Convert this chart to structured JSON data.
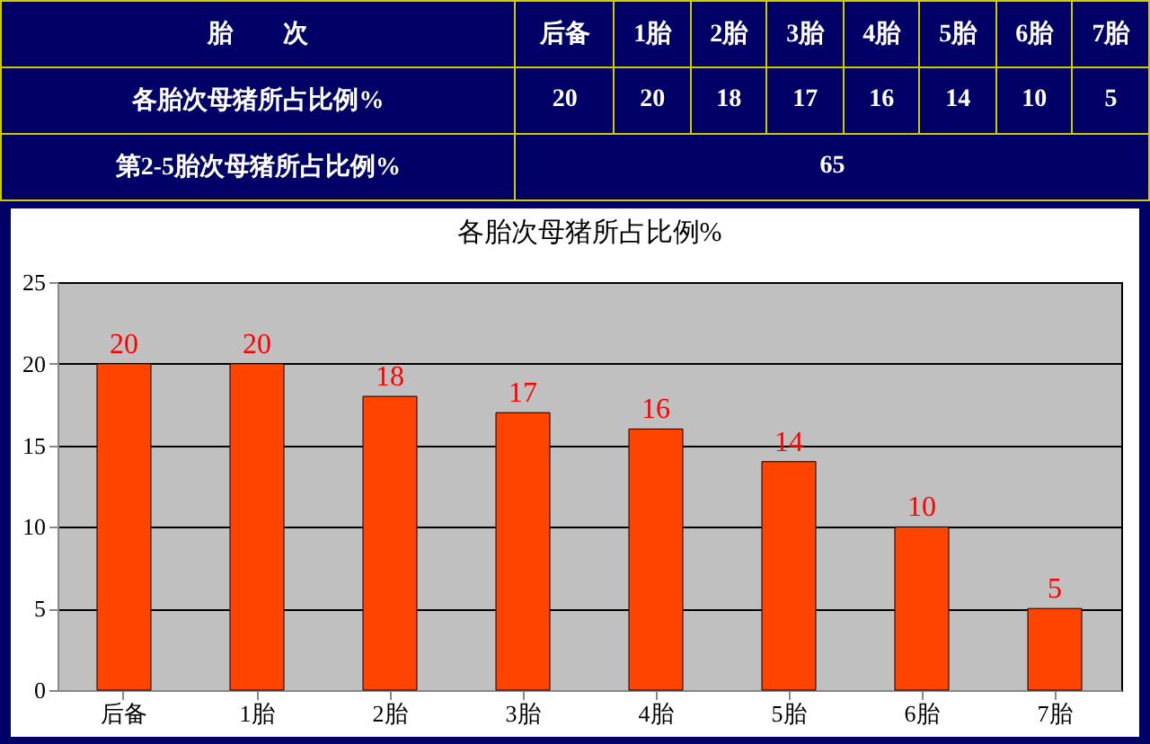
{
  "chart_data": {
    "type": "bar",
    "title": "各胎次母猪所占比例%",
    "categories": [
      "后备",
      "1胎",
      "2胎",
      "3胎",
      "4胎",
      "5胎",
      "6胎",
      "7胎"
    ],
    "values": [
      20,
      20,
      18,
      17,
      16,
      14,
      10,
      5
    ],
    "color": "#ff4400",
    "ylim": [
      0,
      25
    ],
    "yticks": [
      0,
      5,
      10,
      15,
      20,
      25
    ],
    "grid": "y",
    "data_labels": true,
    "annotations": [
      "胎　　次",
      "各胎次母猪所占比例%",
      "20",
      "20",
      "18",
      "17",
      "16",
      "14",
      "10",
      "5",
      "第2-5胎次母猪所占比例%",
      "65"
    ]
  }
}
